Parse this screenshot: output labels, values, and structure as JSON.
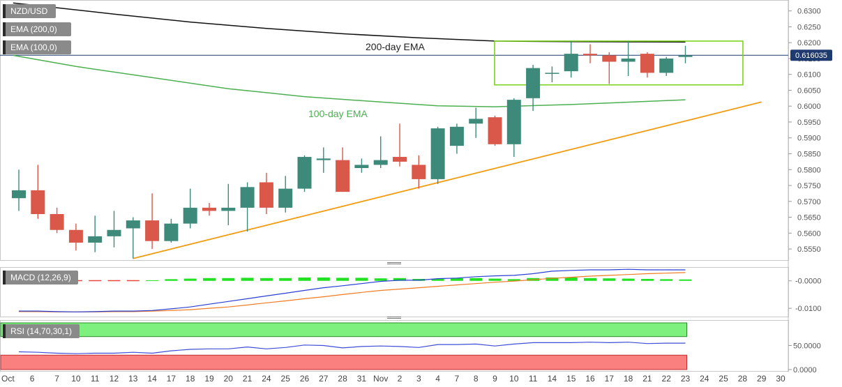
{
  "chart_data": {
    "type": "candlestick",
    "symbol": "NZD/USD",
    "legend": {
      "price": "NZD/USD",
      "ema200": "EMA (200,0)",
      "ema100": "EMA (100,0)",
      "macd": "MACD (12,26,9)",
      "rsi": "RSI (14,70,30,1)"
    },
    "annotations": {
      "ema200": "200-day EMA",
      "ema100": "100-day EMA"
    },
    "current_price": "0.616035",
    "price_ticks": [
      "0.6300",
      "0.6250",
      "0.6200",
      "0.6150",
      "0.6100",
      "0.6050",
      "0.6000",
      "0.5950",
      "0.5900",
      "0.5850",
      "0.5800",
      "0.5750",
      "0.5700",
      "0.5650",
      "0.5600",
      "0.5550"
    ],
    "price_range": [
      0.5515,
      0.633
    ],
    "macd_ticks": [
      "-0.0000",
      "-0.0100"
    ],
    "macd_range": [
      -0.0125,
      0.0045
    ],
    "rsi_ticks": [
      "50.0000",
      "0.0000"
    ],
    "rsi_range": [
      0,
      100
    ],
    "x_labels": [
      {
        "i": 0,
        "t": "Oct"
      },
      {
        "i": 0.7,
        "t": "6"
      },
      {
        "i": 2,
        "t": "7"
      },
      {
        "i": 3,
        "t": "10"
      },
      {
        "i": 4,
        "t": "11"
      },
      {
        "i": 5,
        "t": "12"
      },
      {
        "i": 6,
        "t": "13"
      },
      {
        "i": 7,
        "t": "14"
      },
      {
        "i": 8,
        "t": "17"
      },
      {
        "i": 9,
        "t": "18"
      },
      {
        "i": 10,
        "t": "19"
      },
      {
        "i": 11,
        "t": "20"
      },
      {
        "i": 12,
        "t": "21"
      },
      {
        "i": 13,
        "t": "24"
      },
      {
        "i": 14,
        "t": "25"
      },
      {
        "i": 15,
        "t": "26"
      },
      {
        "i": 16,
        "t": "27"
      },
      {
        "i": 17,
        "t": "28"
      },
      {
        "i": 18,
        "t": "31"
      },
      {
        "i": 19,
        "t": "Nov"
      },
      {
        "i": 20,
        "t": "2"
      },
      {
        "i": 21,
        "t": "3"
      },
      {
        "i": 22,
        "t": "4"
      },
      {
        "i": 23,
        "t": "7"
      },
      {
        "i": 24,
        "t": "8"
      },
      {
        "i": 25,
        "t": "9"
      },
      {
        "i": 26,
        "t": "10"
      },
      {
        "i": 27,
        "t": "11"
      },
      {
        "i": 28,
        "t": "14"
      },
      {
        "i": 29,
        "t": "15"
      },
      {
        "i": 30,
        "t": "16"
      },
      {
        "i": 31,
        "t": "17"
      },
      {
        "i": 32,
        "t": "18"
      },
      {
        "i": 33,
        "t": "21"
      },
      {
        "i": 34,
        "t": "22"
      },
      {
        "i": 35,
        "t": "23"
      },
      {
        "i": 36,
        "t": "24"
      },
      {
        "i": 37,
        "t": "25"
      },
      {
        "i": 38,
        "t": "28"
      },
      {
        "i": 39,
        "t": "29"
      },
      {
        "i": 40,
        "t": "30"
      }
    ],
    "candles": [
      {
        "o": 0.571,
        "h": 0.58,
        "l": 0.567,
        "c": 0.5735
      },
      {
        "o": 0.5735,
        "h": 0.5815,
        "l": 0.5645,
        "c": 0.566
      },
      {
        "o": 0.566,
        "h": 0.568,
        "l": 0.56,
        "c": 0.561
      },
      {
        "o": 0.561,
        "h": 0.563,
        "l": 0.5545,
        "c": 0.557
      },
      {
        "o": 0.557,
        "h": 0.5655,
        "l": 0.554,
        "c": 0.559
      },
      {
        "o": 0.559,
        "h": 0.567,
        "l": 0.5555,
        "c": 0.561
      },
      {
        "o": 0.5615,
        "h": 0.565,
        "l": 0.552,
        "c": 0.564
      },
      {
        "o": 0.564,
        "h": 0.5725,
        "l": 0.555,
        "c": 0.5575
      },
      {
        "o": 0.5575,
        "h": 0.5645,
        "l": 0.557,
        "c": 0.563
      },
      {
        "o": 0.563,
        "h": 0.574,
        "l": 0.5615,
        "c": 0.568
      },
      {
        "o": 0.568,
        "h": 0.5695,
        "l": 0.5655,
        "c": 0.567
      },
      {
        "o": 0.567,
        "h": 0.5755,
        "l": 0.5625,
        "c": 0.568
      },
      {
        "o": 0.568,
        "h": 0.576,
        "l": 0.5605,
        "c": 0.5745
      },
      {
        "o": 0.576,
        "h": 0.579,
        "l": 0.566,
        "c": 0.568
      },
      {
        "o": 0.568,
        "h": 0.578,
        "l": 0.5665,
        "c": 0.574
      },
      {
        "o": 0.574,
        "h": 0.5845,
        "l": 0.573,
        "c": 0.584
      },
      {
        "o": 0.583,
        "h": 0.587,
        "l": 0.579,
        "c": 0.5835
      },
      {
        "o": 0.583,
        "h": 0.587,
        "l": 0.573,
        "c": 0.573
      },
      {
        "o": 0.5805,
        "h": 0.5835,
        "l": 0.579,
        "c": 0.5815
      },
      {
        "o": 0.5815,
        "h": 0.5905,
        "l": 0.5805,
        "c": 0.583
      },
      {
        "o": 0.584,
        "h": 0.5945,
        "l": 0.581,
        "c": 0.5825
      },
      {
        "o": 0.5815,
        "h": 0.5845,
        "l": 0.574,
        "c": 0.577
      },
      {
        "o": 0.577,
        "h": 0.5935,
        "l": 0.5755,
        "c": 0.593
      },
      {
        "o": 0.5875,
        "h": 0.5945,
        "l": 0.585,
        "c": 0.5935
      },
      {
        "o": 0.5945,
        "h": 0.5995,
        "l": 0.59,
        "c": 0.596
      },
      {
        "o": 0.5965,
        "h": 0.597,
        "l": 0.5875,
        "c": 0.588
      },
      {
        "o": 0.588,
        "h": 0.6025,
        "l": 0.584,
        "c": 0.602
      },
      {
        "o": 0.6025,
        "h": 0.613,
        "l": 0.5985,
        "c": 0.612
      },
      {
        "o": 0.6105,
        "h": 0.6125,
        "l": 0.6075,
        "c": 0.6105
      },
      {
        "o": 0.611,
        "h": 0.6205,
        "l": 0.609,
        "c": 0.6165
      },
      {
        "o": 0.6165,
        "h": 0.6195,
        "l": 0.6135,
        "c": 0.616
      },
      {
        "o": 0.616,
        "h": 0.617,
        "l": 0.607,
        "c": 0.614
      },
      {
        "o": 0.614,
        "h": 0.6205,
        "l": 0.6095,
        "c": 0.615
      },
      {
        "o": 0.6165,
        "h": 0.617,
        "l": 0.609,
        "c": 0.6105
      },
      {
        "o": 0.6105,
        "h": 0.6155,
        "l": 0.6095,
        "c": 0.615
      },
      {
        "o": 0.6155,
        "h": 0.619,
        "l": 0.6135,
        "c": 0.616
      }
    ],
    "ema200": [
      [
        -0.3,
        0.6325
      ],
      [
        2,
        0.631
      ],
      [
        5,
        0.629
      ],
      [
        9,
        0.6265
      ],
      [
        13,
        0.6245
      ],
      [
        17,
        0.6228
      ],
      [
        21,
        0.6215
      ],
      [
        25,
        0.6205
      ],
      [
        29,
        0.6203
      ],
      [
        35,
        0.6202
      ]
    ],
    "ema100": [
      [
        -0.3,
        0.616
      ],
      [
        3,
        0.6125
      ],
      [
        7,
        0.609
      ],
      [
        11,
        0.6055
      ],
      [
        15,
        0.603
      ],
      [
        19,
        0.6013
      ],
      [
        22,
        0.6001
      ],
      [
        25,
        0.5998
      ],
      [
        29,
        0.6005
      ],
      [
        35,
        0.602
      ]
    ],
    "trendline": [
      [
        6,
        0.552
      ],
      [
        39,
        0.6013
      ]
    ],
    "range_box": {
      "i0": 25,
      "i1": 38,
      "top": 0.6205,
      "bottom": 0.6067
    },
    "macd_line": [
      -0.011,
      -0.011,
      -0.0112,
      -0.0113,
      -0.0112,
      -0.011,
      -0.011,
      -0.0108,
      -0.0102,
      -0.0095,
      -0.0085,
      -0.0075,
      -0.0065,
      -0.0055,
      -0.0045,
      -0.0035,
      -0.0025,
      -0.0018,
      -0.001,
      -0.0002,
      0.0002,
      0.0002,
      0.0008,
      0.001,
      0.0015,
      0.0018,
      0.002,
      0.0026,
      0.0035,
      0.0038,
      0.004,
      0.004,
      0.0042,
      0.004,
      0.004,
      0.004
    ],
    "signal_line": [
      -0.0112,
      -0.0112,
      -0.0113,
      -0.0113,
      -0.0113,
      -0.0112,
      -0.0112,
      -0.011,
      -0.0108,
      -0.0105,
      -0.01,
      -0.0095,
      -0.0088,
      -0.008,
      -0.0073,
      -0.0065,
      -0.0058,
      -0.005,
      -0.0042,
      -0.0035,
      -0.003,
      -0.0025,
      -0.002,
      -0.0015,
      -0.001,
      -0.0005,
      -0.0001,
      0.0004,
      0.0009,
      0.0013,
      0.0017,
      0.002,
      0.0023,
      0.0026,
      0.0028,
      0.003
    ],
    "macd_hist": [
      0.0002,
      0.0002,
      0.0001,
      0.0,
      0.0001,
      0.0002,
      0.0002,
      0.0002,
      0.0006,
      0.0008,
      0.001,
      0.001,
      0.0011,
      0.001,
      0.001,
      0.0012,
      0.0012,
      0.0011,
      0.0011,
      0.0009,
      0.001,
      0.0007,
      0.0007,
      0.001,
      0.001,
      0.0008,
      0.0006,
      0.001,
      0.0012,
      0.0012,
      0.001,
      0.0009,
      0.0008,
      0.0007,
      0.0006,
      0.0005
    ],
    "rsi": [
      37,
      36,
      34,
      33,
      34,
      34,
      36,
      34,
      39,
      42,
      43,
      43,
      47,
      43,
      46,
      51,
      50,
      45,
      48,
      49,
      48,
      46,
      52,
      52,
      53,
      49,
      53,
      56,
      56,
      56,
      57,
      56,
      57,
      54,
      55,
      55
    ],
    "colors": {
      "bull": "#3d8a7a",
      "bear": "#d9584a",
      "ema200": "#111111",
      "ema100": "#4caf50",
      "trendline": "#f39c12",
      "box": "#7ed321",
      "macd": "#2a3fd6",
      "signal": "#f07b22",
      "hist_pos": "#22e022",
      "hist_neg": "#e8453c",
      "rsi": "#3f4ed6",
      "rsi_over": "#7ef07e",
      "rsi_under": "#fa7f7f"
    }
  }
}
